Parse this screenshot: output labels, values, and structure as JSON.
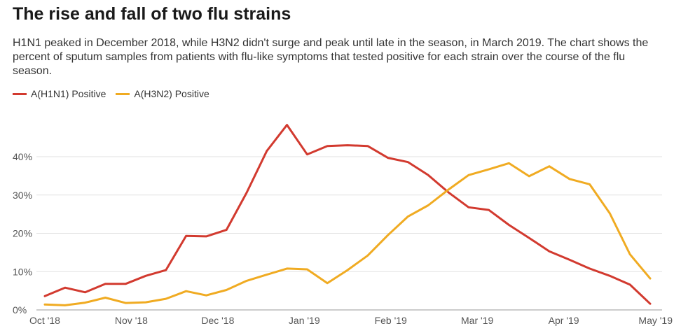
{
  "header": {
    "title": "The rise and fall of two flu strains",
    "subtitle": "H1N1 peaked in December 2018, while H3N2 didn't surge and peak until late in the season, in March 2019. The chart shows the percent of sputum samples from patients with flu-like symptoms that tested positive for each strain over the course of the flu season."
  },
  "chart_data": {
    "type": "line",
    "title": "The rise and fall of two flu strains",
    "subtitle": "H1N1 peaked in December 2018, while H3N2 didn't surge and peak until late in the season, in March 2019. The chart shows the percent of sputum samples from patients with flu-like symptoms that tested positive for each strain over the course of the flu season.",
    "xlabel": "",
    "ylabel": "",
    "x_ticks": [
      "Oct '18",
      "Nov '18",
      "Dec '18",
      "Jan '19",
      "Feb '19",
      "Mar '19",
      "Apr '19",
      "May '19"
    ],
    "y_ticks": [
      "0%",
      "10%",
      "20%",
      "30%",
      "40%"
    ],
    "y_tick_values": [
      0,
      10,
      20,
      30,
      40
    ],
    "ylim": [
      0,
      50
    ],
    "grid": "horizontal",
    "legend_position": "top-left",
    "series": [
      {
        "name": "A(H1N1) Positive",
        "color": "#d23a2f",
        "values": [
          3.6,
          5.8,
          4.6,
          6.8,
          6.8,
          8.9,
          10.4,
          19.3,
          19.2,
          20.9,
          30.6,
          41.5,
          48.3,
          40.6,
          42.8,
          43.0,
          42.8,
          39.7,
          38.6,
          35.2,
          30.7,
          26.8,
          26.1,
          22.2,
          18.8,
          15.3,
          13.1,
          10.8,
          8.9,
          6.6,
          1.6
        ]
      },
      {
        "name": "A(H3N2) Positive",
        "color": "#f0ab22",
        "values": [
          1.4,
          1.2,
          1.9,
          3.2,
          1.8,
          2.0,
          2.9,
          4.9,
          3.8,
          5.2,
          7.6,
          9.2,
          10.8,
          10.6,
          7.0,
          10.4,
          14.2,
          19.5,
          24.4,
          27.3,
          31.4,
          35.2,
          36.7,
          38.3,
          34.9,
          37.5,
          34.2,
          32.8,
          25.2,
          14.5,
          8.2
        ]
      }
    ]
  }
}
